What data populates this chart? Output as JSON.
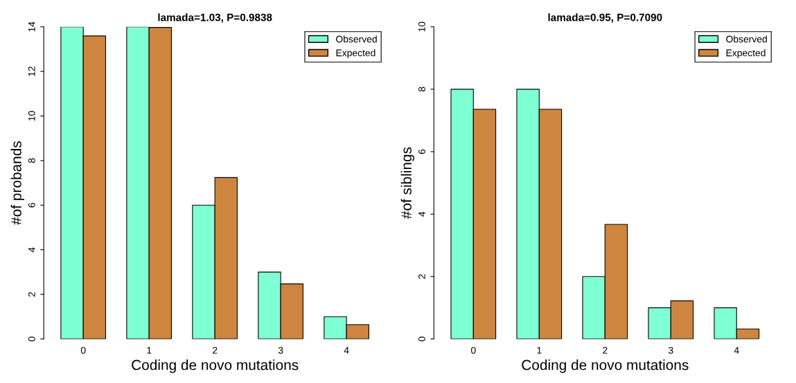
{
  "chart_data": [
    {
      "type": "bar",
      "title": "lamada=1.03, P=0.9838",
      "xlabel": "Coding de novo mutations",
      "ylabel": "#of probands",
      "categories": [
        "0",
        "1",
        "2",
        "3",
        "4"
      ],
      "series": [
        {
          "name": "Observed",
          "color": "#7fffd4",
          "values": [
            14,
            14,
            6,
            3,
            1
          ]
        },
        {
          "name": "Expected",
          "color": "#cd853f",
          "values": [
            13.59,
            13.97,
            7.24,
            2.47,
            0.64
          ]
        }
      ],
      "ylim": [
        0,
        14
      ],
      "yticks": [
        0,
        2,
        4,
        6,
        8,
        10,
        12,
        14
      ],
      "grid": false,
      "legend": "top right"
    },
    {
      "type": "bar",
      "title": "lamada=0.95, P=0.7090",
      "xlabel": "Coding de novo mutations",
      "ylabel": "#of siblings",
      "categories": [
        "0",
        "1",
        "2",
        "3",
        "4"
      ],
      "series": [
        {
          "name": "Observed",
          "color": "#7fffd4",
          "values": [
            8,
            8,
            2,
            1,
            1
          ]
        },
        {
          "name": "Expected",
          "color": "#cd853f",
          "values": [
            7.36,
            7.36,
            3.67,
            1.22,
            0.32
          ]
        }
      ],
      "ylim": [
        0,
        10
      ],
      "yticks": [
        0,
        2,
        4,
        6,
        8,
        10
      ],
      "grid": false,
      "legend": "top right"
    }
  ]
}
